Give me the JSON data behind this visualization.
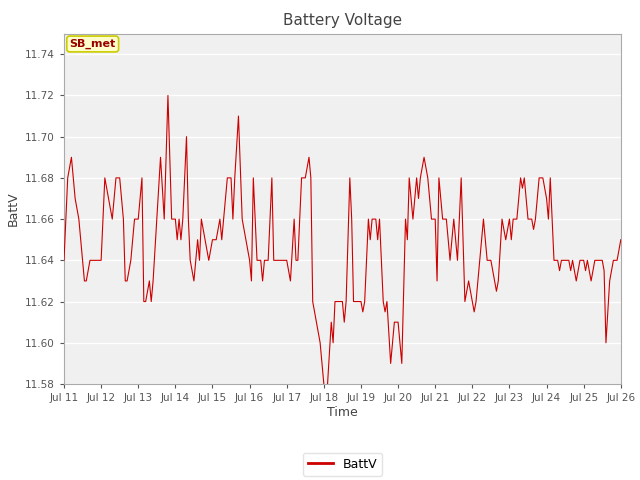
{
  "title": "Battery Voltage",
  "xlabel": "Time",
  "ylabel": "BattV",
  "legend_label": "BattV",
  "line_color": "#cc0000",
  "bg_color": "#ffffff",
  "plot_bg_color": "#f0f0f0",
  "annotation_text": "SB_met",
  "annotation_bg": "#ffffcc",
  "annotation_border": "#cccc00",
  "annotation_text_color": "#990000",
  "ylim": [
    11.58,
    11.75
  ],
  "yticks": [
    11.58,
    11.6,
    11.62,
    11.64,
    11.66,
    11.68,
    11.7,
    11.72,
    11.74
  ],
  "start_day": 11,
  "end_day": 26,
  "title_fontsize": 11,
  "axis_label_fontsize": 9,
  "tick_fontsize": 7.5,
  "legend_fontsize": 9,
  "data_x": [
    0.0,
    0.1,
    0.2,
    0.3,
    0.4,
    0.5,
    0.55,
    0.6,
    0.7,
    0.8,
    0.9,
    1.0,
    1.1,
    1.2,
    1.3,
    1.4,
    1.5,
    1.6,
    1.65,
    1.7,
    1.8,
    1.9,
    2.0,
    2.1,
    2.15,
    2.2,
    2.3,
    2.35,
    2.4,
    2.5,
    2.6,
    2.7,
    2.8,
    2.9,
    3.0,
    3.05,
    3.1,
    3.15,
    3.2,
    3.3,
    3.35,
    3.4,
    3.5,
    3.6,
    3.65,
    3.7,
    3.8,
    3.9,
    4.0,
    4.1,
    4.2,
    4.25,
    4.3,
    4.4,
    4.5,
    4.55,
    4.6,
    4.7,
    4.8,
    4.9,
    5.0,
    5.05,
    5.1,
    5.2,
    5.3,
    5.35,
    5.4,
    5.5,
    5.6,
    5.65,
    5.7,
    5.8,
    5.9,
    6.0,
    6.1,
    6.2,
    6.25,
    6.3,
    6.4,
    6.5,
    6.6,
    6.65,
    6.7,
    6.8,
    6.9,
    7.0,
    7.05,
    7.1,
    7.2,
    7.25,
    7.3,
    7.4,
    7.5,
    7.55,
    7.6,
    7.7,
    7.75,
    7.8,
    7.9,
    8.0,
    8.05,
    8.1,
    8.2,
    8.25,
    8.3,
    8.4,
    8.45,
    8.5,
    8.6,
    8.65,
    8.7,
    8.8,
    8.9,
    9.0,
    9.05,
    9.1,
    9.2,
    9.25,
    9.3,
    9.4,
    9.5,
    9.55,
    9.6,
    9.7,
    9.8,
    9.9,
    10.0,
    10.05,
    10.1,
    10.2,
    10.3,
    10.35,
    10.4,
    10.5,
    10.55,
    10.6,
    10.7,
    10.8,
    10.9,
    11.0,
    11.05,
    11.1,
    11.2,
    11.3,
    11.35,
    11.4,
    11.5,
    11.6,
    11.65,
    11.7,
    11.8,
    11.9,
    12.0,
    12.05,
    12.1,
    12.2,
    12.3,
    12.35,
    12.4,
    12.5,
    12.6,
    12.65,
    12.7,
    12.8,
    12.9,
    13.0,
    13.05,
    13.1,
    13.2,
    13.3,
    13.35,
    13.4,
    13.5,
    13.6,
    13.65,
    13.7,
    13.8,
    13.9,
    14.0,
    14.05,
    14.1,
    14.2,
    14.3,
    14.4,
    14.5,
    14.55,
    14.6,
    14.7,
    14.8,
    14.9,
    15.0
  ],
  "data_y": [
    11.64,
    11.68,
    11.69,
    11.67,
    11.66,
    11.64,
    11.63,
    11.63,
    11.64,
    11.64,
    11.64,
    11.64,
    11.68,
    11.67,
    11.66,
    11.68,
    11.68,
    11.66,
    11.63,
    11.63,
    11.64,
    11.66,
    11.66,
    11.68,
    11.62,
    11.62,
    11.63,
    11.62,
    11.63,
    11.66,
    11.69,
    11.66,
    11.72,
    11.66,
    11.66,
    11.65,
    11.66,
    11.65,
    11.66,
    11.7,
    11.66,
    11.64,
    11.63,
    11.65,
    11.64,
    11.66,
    11.65,
    11.64,
    11.65,
    11.65,
    11.66,
    11.65,
    11.66,
    11.68,
    11.68,
    11.66,
    11.68,
    11.71,
    11.66,
    11.65,
    11.64,
    11.63,
    11.68,
    11.64,
    11.64,
    11.63,
    11.64,
    11.64,
    11.68,
    11.64,
    11.64,
    11.64,
    11.64,
    11.64,
    11.63,
    11.66,
    11.64,
    11.64,
    11.68,
    11.68,
    11.69,
    11.68,
    11.62,
    11.61,
    11.6,
    11.58,
    11.575,
    11.58,
    11.61,
    11.6,
    11.62,
    11.62,
    11.62,
    11.61,
    11.62,
    11.68,
    11.66,
    11.62,
    11.62,
    11.62,
    11.615,
    11.62,
    11.66,
    11.65,
    11.66,
    11.66,
    11.65,
    11.66,
    11.62,
    11.615,
    11.62,
    11.59,
    11.61,
    11.61,
    11.6,
    11.59,
    11.66,
    11.65,
    11.68,
    11.66,
    11.68,
    11.67,
    11.68,
    11.69,
    11.68,
    11.66,
    11.66,
    11.63,
    11.68,
    11.66,
    11.66,
    11.65,
    11.64,
    11.66,
    11.65,
    11.64,
    11.68,
    11.62,
    11.63,
    11.62,
    11.615,
    11.62,
    11.64,
    11.66,
    11.65,
    11.64,
    11.64,
    11.63,
    11.625,
    11.63,
    11.66,
    11.65,
    11.66,
    11.65,
    11.66,
    11.66,
    11.68,
    11.675,
    11.68,
    11.66,
    11.66,
    11.655,
    11.66,
    11.68,
    11.68,
    11.67,
    11.66,
    11.68,
    11.64,
    11.64,
    11.635,
    11.64,
    11.64,
    11.64,
    11.635,
    11.64,
    11.63,
    11.64,
    11.64,
    11.635,
    11.64,
    11.63,
    11.64,
    11.64,
    11.64,
    11.635,
    11.6,
    11.63,
    11.64,
    11.64,
    11.65
  ]
}
